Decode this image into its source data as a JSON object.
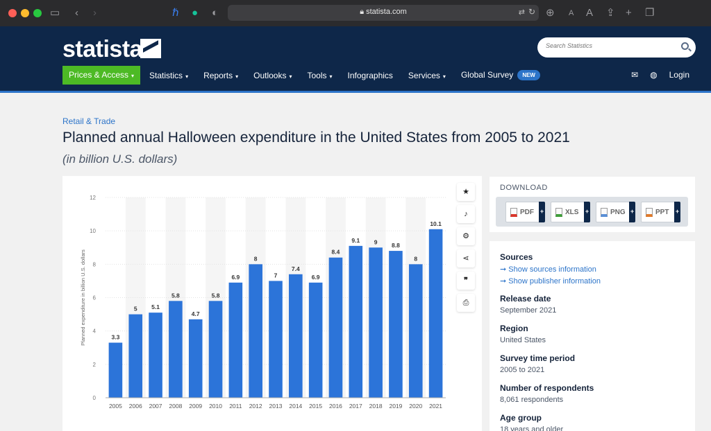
{
  "browser": {
    "url": "statista.com",
    "traffic_colors": [
      "#ff5f57",
      "#febc2e",
      "#28c840"
    ]
  },
  "header": {
    "logo": "statista",
    "search_placeholder": "Search Statistics",
    "nav": [
      {
        "label": "Prices & Access",
        "caret": "▾"
      },
      {
        "label": "Statistics",
        "caret": "▾"
      },
      {
        "label": "Reports",
        "caret": "▾"
      },
      {
        "label": "Outlooks",
        "caret": "▾"
      },
      {
        "label": "Tools",
        "caret": "▾"
      },
      {
        "label": "Infographics"
      },
      {
        "label": "Services",
        "caret": "▾"
      },
      {
        "label": "Global Survey"
      }
    ],
    "new_badge": "NEW",
    "login": "Login"
  },
  "page": {
    "category": "Retail & Trade",
    "title": "Planned annual Halloween expenditure in the United States from 2005 to 2021",
    "subtitle": "(in billion U.S. dollars)"
  },
  "download": {
    "title": "DOWNLOAD",
    "formats": [
      {
        "label": "PDF",
        "color": "#d9362b"
      },
      {
        "label": "XLS",
        "color": "#3f9e3a"
      },
      {
        "label": "PNG",
        "color": "#5a8fd6"
      },
      {
        "label": "PPT",
        "color": "#e07a2a"
      }
    ]
  },
  "info": {
    "sources_h": "Sources",
    "sources_link1": "➞ Show sources information",
    "sources_link2": "➞ Show publisher information",
    "release_h": "Release date",
    "release_v": "September 2021",
    "region_h": "Region",
    "region_v": "United States",
    "survey_h": "Survey time period",
    "survey_v": "2005 to 2021",
    "resp_h": "Number of respondents",
    "resp_v": "8,061 respondents",
    "age_h": "Age group",
    "age_v": "18 years and older"
  },
  "chart_data": {
    "type": "bar",
    "categories": [
      "2005",
      "2006",
      "2007",
      "2008",
      "2009",
      "2010",
      "2011",
      "2012",
      "2013",
      "2014",
      "2015",
      "2016",
      "2017",
      "2018",
      "2019",
      "2020",
      "2021"
    ],
    "values": [
      3.3,
      5,
      5.1,
      5.8,
      4.7,
      5.8,
      6.9,
      8,
      7,
      7.4,
      6.9,
      8.4,
      9.1,
      9,
      8.8,
      8,
      10.1
    ],
    "value_labels": [
      "3.3",
      "5",
      "5.1",
      "5.8",
      "4.7",
      "5.8",
      "6.9",
      "8",
      "7",
      "7.4",
      "6.9",
      "8.4",
      "9.1",
      "9",
      "8.8",
      "8",
      "10.1"
    ],
    "ylabel": "Planned expenditure in billion U.S. dollars",
    "yticks": [
      "0",
      "2",
      "4",
      "6",
      "8",
      "10",
      "12"
    ],
    "ylim": [
      0,
      12
    ],
    "bar_color": "#2c74d9",
    "grid": true
  }
}
